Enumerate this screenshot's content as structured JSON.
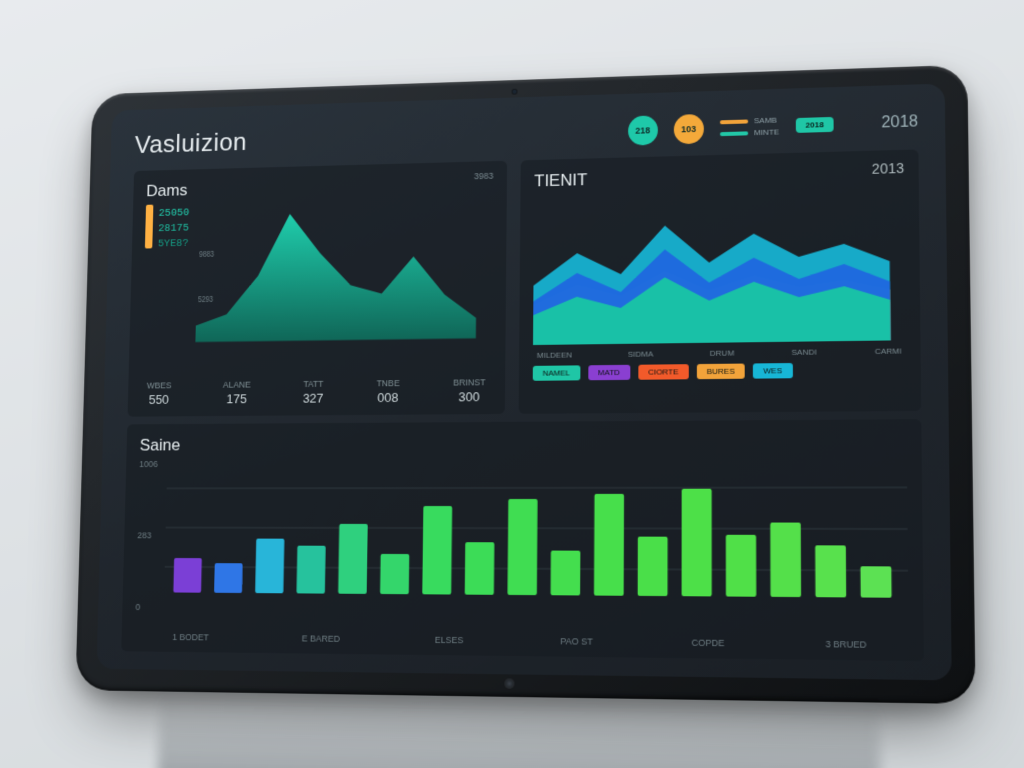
{
  "header": {
    "title": "Vasluizion",
    "dot1_color": "#1ec9a9",
    "dot1_label": "218",
    "dot2_color": "#f4a93a",
    "dot2_label": "103",
    "legend1_label": "SAMB",
    "legend1_color": "#f4a93a",
    "legend2_label": "MINTE",
    "legend2_color": "#22c7a7",
    "pill1_label": "2018",
    "pill1_color": "#1fc6a6",
    "right_label": "2018"
  },
  "left_chart": {
    "title": "Dams",
    "type": "area",
    "corner_value": "3983",
    "stats": [
      {
        "text": "25050",
        "color": "#22d0b0"
      },
      {
        "text": "28175",
        "color": "#1fbfa2"
      },
      {
        "text": "5YE8?",
        "color": "#159d86"
      }
    ],
    "mini_bar_color": "#ffb143",
    "y_ticks": [
      "9883",
      "5293"
    ],
    "x_points": [
      0,
      40,
      80,
      120,
      160,
      200,
      240,
      280,
      320,
      360
    ],
    "y_values": [
      18,
      30,
      72,
      140,
      96,
      60,
      50,
      90,
      48,
      22
    ],
    "fill_top": "#1fd6b3",
    "fill_bottom": "#0f6a5a",
    "footer": [
      {
        "label": "WBES",
        "value": "550"
      },
      {
        "label": "ALANE",
        "value": "175"
      },
      {
        "label": "TATT",
        "value": "327"
      },
      {
        "label": "TNBE",
        "value": "008"
      },
      {
        "label": "BRINST",
        "value": "300"
      }
    ]
  },
  "right_chart": {
    "title": "TIENIT",
    "type": "stacked-area",
    "corner_value": "2013",
    "x_points": [
      0,
      48,
      96,
      144,
      192,
      240,
      288,
      336,
      384
    ],
    "series": [
      {
        "color": "#f2a33a",
        "y": [
          40,
          60,
          48,
          72,
          52,
          66,
          54,
          60,
          50
        ]
      },
      {
        "color": "#f25a2a",
        "y": [
          30,
          46,
          36,
          54,
          40,
          50,
          40,
          46,
          38
        ]
      },
      {
        "color": "#17b6d6",
        "y": [
          60,
          92,
          70,
          118,
          80,
          108,
          84,
          96,
          78
        ]
      },
      {
        "color": "#1f66e0",
        "y": [
          44,
          72,
          52,
          94,
          60,
          84,
          62,
          76,
          58
        ]
      },
      {
        "color": "#19c9a2",
        "y": [
          30,
          48,
          36,
          66,
          42,
          60,
          44,
          54,
          40
        ]
      }
    ],
    "legend_labels": [
      "MILDEEN",
      "SIDMA",
      "DRUM",
      "SANDI",
      "CARMI"
    ],
    "pills": [
      {
        "label": "NAMEL",
        "color": "#1fc6a6"
      },
      {
        "label": "MATD",
        "color": "#8a3fd1"
      },
      {
        "label": "CIORTE",
        "color": "#f25a2a"
      },
      {
        "label": "BURES",
        "color": "#f2a33a"
      },
      {
        "label": "WES",
        "color": "#17b6d6"
      }
    ]
  },
  "bottom_chart": {
    "title": "Saine",
    "type": "bar",
    "y_ticks": [
      "1006",
      "283",
      "0"
    ],
    "heights": [
      35,
      30,
      55,
      48,
      70,
      40,
      88,
      52,
      95,
      44,
      100,
      58,
      105,
      60,
      72,
      50,
      30
    ],
    "colors": [
      "#7b3fd6",
      "#2f76e6",
      "#28b5d9",
      "#26c29d",
      "#2fd07e",
      "#34d66b",
      "#38db5e",
      "#3cdc57",
      "#40dd52",
      "#44de4e",
      "#47df4b",
      "#4adf49",
      "#4de048",
      "#50e048",
      "#54e04a",
      "#58e14d",
      "#5ce153"
    ],
    "x_labels": [
      "1 BODET",
      "E BARED",
      "ELSES",
      "PAO ST",
      "COPDE",
      "3 BRUED"
    ]
  },
  "colors": {
    "bg": "#20262d",
    "text": "#cfd6da",
    "muted": "#7a8a90"
  }
}
